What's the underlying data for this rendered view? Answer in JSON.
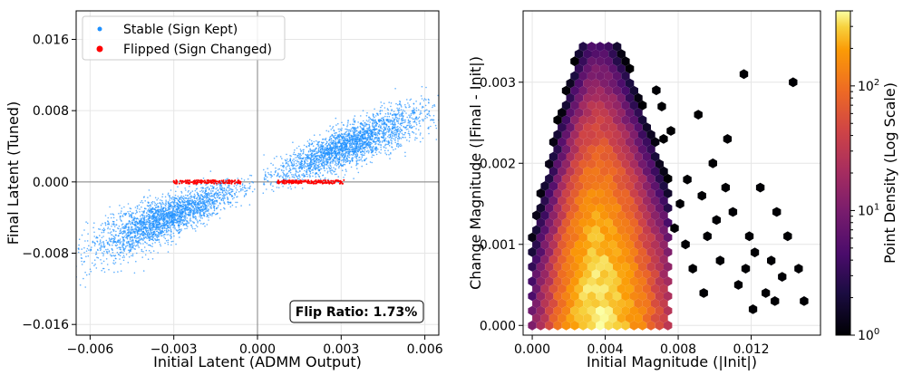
{
  "chart_data": [
    {
      "type": "scatter",
      "xlabel": "Initial Latent (ADMM Output)",
      "ylabel": "Final Latent (Tuned)",
      "xlim": [
        -0.0065,
        0.0065
      ],
      "ylim": [
        -0.0172,
        0.0192
      ],
      "xticks": [
        -0.006,
        -0.003,
        0.0,
        0.003,
        0.006
      ],
      "xtick_labels": [
        "−0.006",
        "−0.003",
        "0.000",
        "0.003",
        "0.006"
      ],
      "yticks": [
        -0.016,
        -0.008,
        0.0,
        0.008,
        0.016
      ],
      "ytick_labels": [
        "−0.016",
        "−0.008",
        "0.000",
        "0.008",
        "0.016"
      ],
      "grid": true,
      "reference_lines": {
        "x": 0,
        "y": 0
      },
      "legend_position": "top-left",
      "series": [
        {
          "name": "Stable (Sign Kept)",
          "color": "#1e90ff",
          "clusters": [
            {
              "x_range": [
                -0.0065,
                -0.0001
              ],
              "slope": 1.25,
              "y_offset": 0.0,
              "spread": 0.0014
            },
            {
              "x_range": [
                0.0002,
                0.0065
              ],
              "slope": 1.25,
              "y_offset": 0.0,
              "spread": 0.0014
            }
          ]
        },
        {
          "name": "Flipped (Sign Changed)",
          "color": "#ff0000",
          "clusters": [
            {
              "x_range": [
                -0.003,
                -0.0006
              ],
              "y_range": [
                -0.0002,
                0.0002
              ]
            },
            {
              "x_range": [
                0.0007,
                0.0031
              ],
              "y_range": [
                -0.0002,
                0.0002
              ]
            }
          ]
        }
      ],
      "annotation": "Flip Ratio: 1.73%",
      "annotation_position": "bottom-right"
    },
    {
      "type": "hexbin",
      "xlabel": "Initial Magnitude (|Init|)",
      "ylabel": "Change Magnitude (|Final - Init|)",
      "xlim": [
        -0.0005,
        0.0158
      ],
      "ylim": [
        -0.00012,
        0.00388
      ],
      "xticks": [
        0.0,
        0.004,
        0.008,
        0.012
      ],
      "xtick_labels": [
        "0.000",
        "0.004",
        "0.008",
        "0.012"
      ],
      "yticks": [
        0.0,
        0.001,
        0.002,
        0.003
      ],
      "ytick_labels": [
        "0.000",
        "0.001",
        "0.002",
        "0.003"
      ],
      "grid": true,
      "colormap": "inferno",
      "colorbar_label": "Point Density (Log Scale)",
      "colorbar_range": [
        1,
        400
      ],
      "colorbar_ticks": [
        {
          "value": 1,
          "base": "10",
          "exp": "0"
        },
        {
          "value": 10,
          "base": "10",
          "exp": "1"
        },
        {
          "value": 100,
          "base": "10",
          "exp": "2"
        }
      ],
      "density_model": {
        "peak_x": 0.0035,
        "x_spread_low": 0.0013,
        "x_spread_high": 0.0018,
        "peak_count": 350,
        "decay_top": 0.0034
      },
      "outliers": [
        [
          0.0068,
          0.0029
        ],
        [
          0.0071,
          0.0027
        ],
        [
          0.0076,
          0.0024
        ],
        [
          0.0072,
          0.0023
        ],
        [
          0.0081,
          0.0015
        ],
        [
          0.0085,
          0.0018
        ],
        [
          0.0091,
          0.0026
        ],
        [
          0.0093,
          0.0016
        ],
        [
          0.0096,
          0.0011
        ],
        [
          0.0099,
          0.002
        ],
        [
          0.0103,
          0.0008
        ],
        [
          0.0107,
          0.0023
        ],
        [
          0.011,
          0.0014
        ],
        [
          0.0113,
          0.0005
        ],
        [
          0.0116,
          0.0031
        ],
        [
          0.0119,
          0.0011
        ],
        [
          0.0122,
          0.0009
        ],
        [
          0.0125,
          0.0017
        ],
        [
          0.0128,
          0.0004
        ],
        [
          0.0131,
          0.0008
        ],
        [
          0.0134,
          0.0014
        ],
        [
          0.0137,
          0.0006
        ],
        [
          0.014,
          0.0011
        ],
        [
          0.0143,
          0.003
        ],
        [
          0.0146,
          0.0007
        ],
        [
          0.0149,
          0.0003
        ],
        [
          0.0088,
          0.0007
        ],
        [
          0.0094,
          0.0004
        ],
        [
          0.0101,
          0.0013
        ],
        [
          0.0084,
          0.001
        ],
        [
          0.0078,
          0.0012
        ],
        [
          0.0121,
          0.0002
        ],
        [
          0.0133,
          0.0003
        ],
        [
          0.0117,
          0.0007
        ],
        [
          0.0106,
          0.0017
        ]
      ]
    }
  ]
}
